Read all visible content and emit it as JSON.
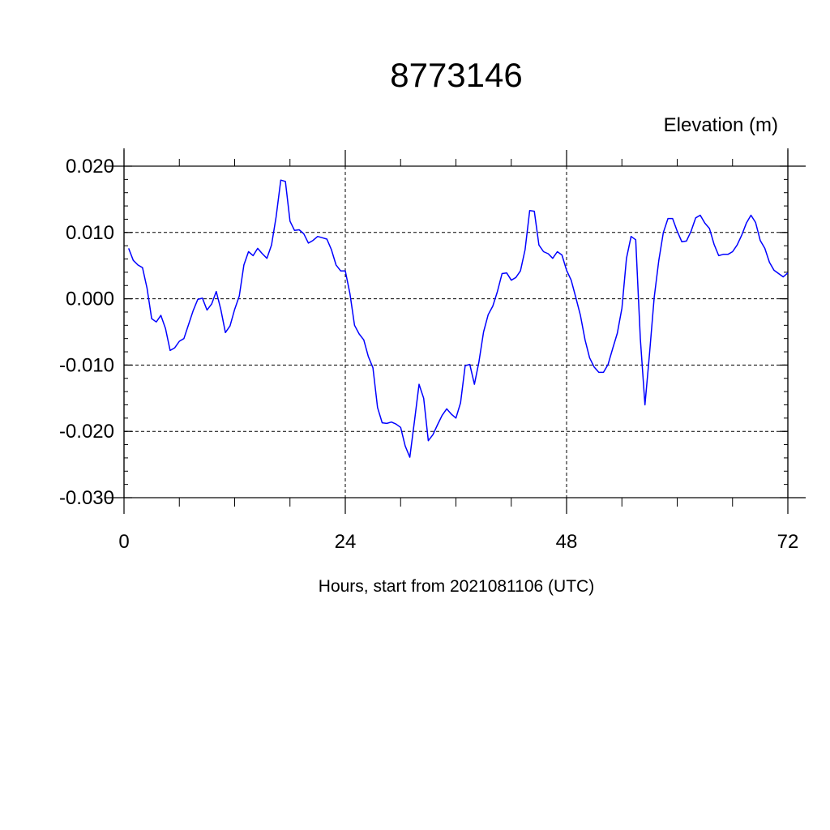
{
  "chart_data": {
    "type": "line",
    "title": "8773146",
    "ylabel": "Elevation (m)",
    "xlabel": "Hours, start from 2021081106 (UTC)",
    "xlim": [
      0,
      72
    ],
    "ylim": [
      -0.03,
      0.02
    ],
    "x_ticks": [
      0,
      24,
      48,
      72
    ],
    "x_tick_labels": [
      "0",
      "24",
      "48",
      "72"
    ],
    "y_ticks": [
      0.02,
      0.01,
      0.0,
      -0.01,
      -0.02,
      -0.03
    ],
    "y_tick_labels": [
      "0.020",
      "0.010",
      "0.000",
      "-0.010",
      "-0.020",
      "-0.030"
    ],
    "grid": true,
    "series": [
      {
        "color": "#0000ff",
        "x": [
          0.5,
          1.0,
          1.5,
          2.0,
          2.5,
          3.0,
          3.5,
          4.0,
          4.5,
          5.0,
          5.5,
          6.0,
          6.5,
          7.0,
          7.5,
          8.0,
          8.5,
          9.0,
          9.5,
          10.0,
          10.5,
          11.0,
          11.5,
          12.0,
          12.5,
          13.0,
          13.5,
          14.0,
          14.5,
          15.0,
          15.5,
          16.0,
          16.5,
          17.0,
          17.5,
          18.0,
          18.5,
          19.0,
          19.5,
          20.0,
          20.5,
          21.0,
          21.5,
          22.0,
          22.5,
          23.0,
          23.5,
          24.0,
          24.5,
          25.0,
          25.5,
          26.0,
          26.5,
          27.0,
          27.5,
          28.0,
          28.5,
          29.0,
          29.5,
          30.0,
          30.5,
          31.0,
          31.5,
          32.0,
          32.5,
          33.0,
          33.5,
          34.0,
          34.5,
          35.0,
          35.5,
          36.0,
          36.5,
          37.0,
          37.5,
          38.0,
          38.5,
          39.0,
          39.5,
          40.0,
          40.5,
          41.0,
          41.5,
          42.0,
          42.5,
          43.0,
          43.5,
          44.0,
          44.5,
          45.0,
          45.5,
          46.0,
          46.5,
          47.0,
          47.5,
          48.0,
          48.5,
          49.0,
          49.5,
          50.0,
          50.5,
          51.0,
          51.5,
          52.0,
          52.5,
          53.0,
          53.5,
          54.0,
          54.5,
          55.0,
          55.5,
          56.0,
          56.5,
          57.0,
          57.5,
          58.0,
          58.5,
          59.0,
          59.5,
          60.0,
          60.5,
          61.0,
          61.5,
          62.0,
          62.5,
          63.0,
          63.5,
          64.0,
          64.5,
          65.0,
          65.5,
          66.0,
          66.5,
          67.0,
          67.5,
          68.0,
          68.5,
          69.0,
          69.5,
          70.0,
          70.5,
          71.0,
          71.5,
          72.0
        ],
        "y": [
          0.0076,
          0.0058,
          0.0051,
          0.0047,
          0.0016,
          -0.003,
          -0.0035,
          -0.0025,
          -0.0045,
          -0.0078,
          -0.0074,
          -0.0064,
          -0.006,
          -0.0039,
          -0.0018,
          -0.0001,
          0.0001,
          -0.0017,
          -0.0008,
          0.0011,
          -0.0016,
          -0.0051,
          -0.0041,
          -0.0016,
          0.0004,
          0.0051,
          0.0071,
          0.0065,
          0.0076,
          0.0068,
          0.0061,
          0.0081,
          0.0124,
          0.0179,
          0.0177,
          0.0117,
          0.0103,
          0.0104,
          0.0098,
          0.0084,
          0.0088,
          0.0094,
          0.0092,
          0.009,
          0.0074,
          0.0051,
          0.0042,
          0.0042,
          0.0008,
          -0.004,
          -0.0053,
          -0.0062,
          -0.0087,
          -0.0104,
          -0.0164,
          -0.0187,
          -0.0188,
          -0.0186,
          -0.0189,
          -0.0194,
          -0.0222,
          -0.0239,
          -0.0185,
          -0.0129,
          -0.015,
          -0.0214,
          -0.0205,
          -0.019,
          -0.0176,
          -0.0166,
          -0.0174,
          -0.018,
          -0.0157,
          -0.0101,
          -0.0099,
          -0.0129,
          -0.0095,
          -0.005,
          -0.0024,
          -0.0011,
          0.0011,
          0.0038,
          0.0039,
          0.0028,
          0.0032,
          0.0042,
          0.0074,
          0.0133,
          0.0132,
          0.0081,
          0.0071,
          0.0068,
          0.0061,
          0.0071,
          0.0066,
          0.0043,
          0.0028,
          0.0002,
          -0.0025,
          -0.0062,
          -0.0089,
          -0.0103,
          -0.0111,
          -0.0111,
          -0.0099,
          -0.0075,
          -0.0052,
          -0.0014,
          0.0061,
          0.0094,
          0.0089,
          -0.006,
          -0.016,
          -0.0082,
          0.0002,
          0.0058,
          0.01,
          0.0121,
          0.0121,
          0.0102,
          0.0086,
          0.0087,
          0.0102,
          0.0122,
          0.0126,
          0.0114,
          0.0106,
          0.0082,
          0.0065,
          0.0067,
          0.0067,
          0.0071,
          0.0081,
          0.0096,
          0.0114,
          0.0126,
          0.0115,
          0.0088,
          0.0076,
          0.0055,
          0.0043,
          0.0038,
          0.0033,
          0.0039
        ]
      }
    ]
  }
}
